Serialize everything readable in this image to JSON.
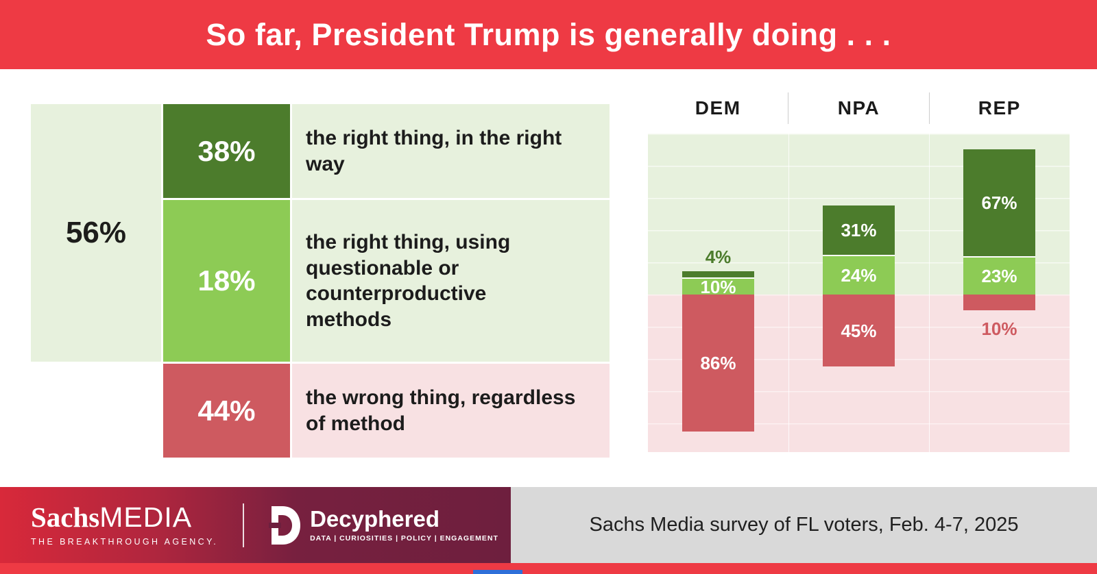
{
  "header": {
    "title": "So far, President Trump is generally doing . . ."
  },
  "colors": {
    "banner_red": "#EE3A44",
    "dark_green": "#4C7C2C",
    "light_green": "#8DCB55",
    "pale_green": "#E7F1DD",
    "bar_red": "#CE5A60",
    "pale_pink": "#F8E1E3",
    "footer_gradient_start": "#D8293A",
    "footer_gradient_end": "#6E1F3E",
    "footer_gray": "#D9D9D9"
  },
  "chart_data": [
    {
      "type": "bar",
      "stacked": true,
      "title": "So far, President Trump is generally doing . . .",
      "total_label": "56%",
      "total_value": 56,
      "segments": [
        {
          "label": "the right thing, in the right way",
          "value": 38,
          "pct_label": "38%",
          "color": "#4C7C2C"
        },
        {
          "label": "the right thing, using questionable or counterproductive methods",
          "value": 18,
          "pct_label": "18%",
          "color": "#8DCB55"
        },
        {
          "label": "the wrong thing, regardless of method",
          "value": 44,
          "pct_label": "44%",
          "color": "#CE5A60"
        }
      ]
    },
    {
      "type": "bar",
      "stacked": true,
      "categories": [
        "DEM",
        "NPA",
        "REP"
      ],
      "series": [
        {
          "name": "the right thing, in the right way",
          "color": "#4C7C2C",
          "values": [
            4,
            31,
            67
          ]
        },
        {
          "name": "the right thing, using questionable or counterproductive methods",
          "color": "#8DCB55",
          "values": [
            10,
            24,
            23
          ]
        },
        {
          "name": "the wrong thing, regardless of method",
          "color": "#CE5A60",
          "values": [
            86,
            45,
            10
          ],
          "plotted": "downward-from-baseline"
        }
      ],
      "value_suffix": "%",
      "legend": "none",
      "gridlines": true,
      "baseline": 0
    }
  ],
  "footer": {
    "brand_serif": "Sachs",
    "brand_sans": "MEDIA",
    "tagline": "THE BREAKTHROUGH AGENCY.",
    "logo2_name": "Decyphered",
    "logo2_sub": "DATA | CURIOSITIES | POLICY | ENGAGEMENT",
    "source": "Sachs Media survey of FL voters, Feb. 4-7, 2025"
  }
}
